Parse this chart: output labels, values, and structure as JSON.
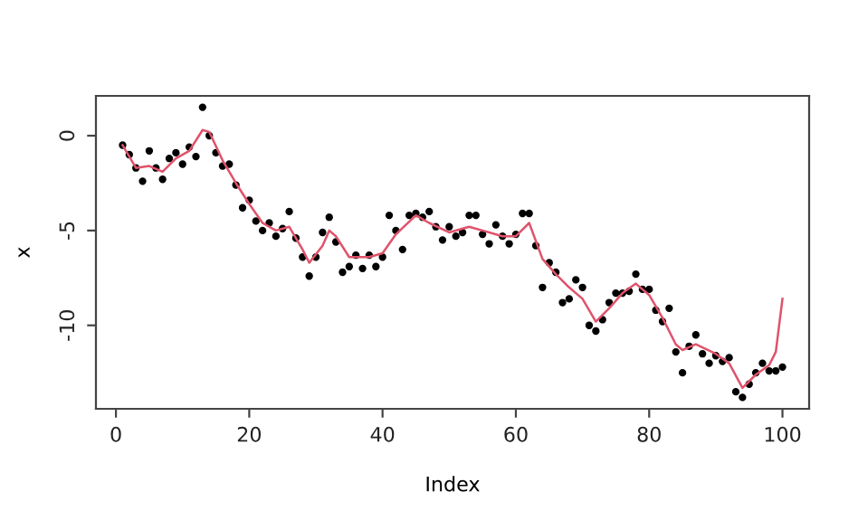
{
  "chart_data": {
    "type": "scatter",
    "xlabel": "Index",
    "ylabel": "x",
    "xlim": [
      -3,
      104
    ],
    "ylim": [
      -14.4,
      2.1
    ],
    "xticks": [
      0,
      20,
      40,
      60,
      80,
      100
    ],
    "yticks": [
      0,
      -5,
      -10
    ],
    "grid": false,
    "series": [
      {
        "color": "#000000",
        "marker": "circle",
        "x": [
          1,
          2,
          3,
          4,
          5,
          6,
          7,
          8,
          9,
          10,
          11,
          12,
          13,
          14,
          15,
          16,
          17,
          18,
          19,
          20,
          21,
          22,
          23,
          24,
          25,
          26,
          27,
          28,
          29,
          30,
          31,
          32,
          33,
          34,
          35,
          36,
          37,
          38,
          39,
          40,
          41,
          42,
          43,
          44,
          45,
          46,
          47,
          48,
          49,
          50,
          51,
          52,
          53,
          54,
          55,
          56,
          57,
          58,
          59,
          60,
          61,
          62,
          63,
          64,
          65,
          66,
          67,
          68,
          69,
          70,
          71,
          72,
          73,
          74,
          75,
          76,
          77,
          78,
          79,
          80,
          81,
          82,
          83,
          84,
          85,
          86,
          87,
          88,
          89,
          90,
          91,
          92,
          93,
          94,
          95,
          96,
          97,
          98,
          99,
          100
        ],
        "values": [
          -0.5,
          -1.0,
          -1.7,
          -2.4,
          -0.8,
          -1.7,
          -2.3,
          -1.2,
          -0.9,
          -1.5,
          -0.6,
          -1.1,
          1.5,
          0,
          -0.9,
          -1.6,
          -1.5,
          -2.6,
          -3.8,
          -3.4,
          -4.5,
          -5.0,
          -4.6,
          -5.3,
          -4.9,
          -4.0,
          -5.4,
          -6.4,
          -7.4,
          -6.4,
          -5.1,
          -4.3,
          -5.6,
          -7.2,
          -6.9,
          -6.3,
          -7.0,
          -6.3,
          -6.9,
          -6.4,
          -4.2,
          -5.0,
          -6.0,
          -4.2,
          -4.1,
          -4.3,
          -4.0,
          -4.8,
          -5.5,
          -4.8,
          -5.3,
          -5.1,
          -4.2,
          -4.2,
          -5.2,
          -5.7,
          -4.7,
          -5.3,
          -5.7,
          -5.2,
          -4.1,
          -4.1,
          -5.8,
          -8.0,
          -6.7,
          -7.2,
          -8.8,
          -8.6,
          -7.6,
          -8.0,
          -10.0,
          -10.3,
          -9.7,
          -8.8,
          -8.3,
          -8.3,
          -8.2,
          -7.3,
          -8.1,
          -8.1,
          -9.2,
          -9.8,
          -9.1,
          -11.4,
          -12.5,
          -11.1,
          -10.5,
          -11.5,
          -12.0,
          -11.6,
          -11.9,
          -11.7,
          -13.5,
          -13.8,
          -13.1,
          -12.5,
          -12.0,
          -12.4,
          -12.4,
          -12.2
        ]
      },
      {
        "type": "line",
        "color": "#df536b",
        "line_style": "solid",
        "marker": "none",
        "x": [
          1,
          3,
          5,
          7,
          9,
          11,
          13,
          14,
          16,
          18,
          20,
          22,
          24,
          26,
          28,
          29,
          31,
          32,
          33,
          35,
          38,
          40,
          42,
          45,
          47,
          50,
          53,
          55,
          58,
          60,
          62,
          64,
          66,
          68,
          70,
          72,
          74,
          76,
          78,
          80,
          82,
          84,
          85,
          87,
          90,
          92,
          94,
          96,
          98,
          99,
          100
        ],
        "values": [
          -0.5,
          -1.7,
          -1.6,
          -1.9,
          -1.2,
          -0.8,
          0.3,
          0.2,
          -1.3,
          -2.5,
          -3.6,
          -4.6,
          -5.0,
          -4.8,
          -6.0,
          -6.7,
          -5.8,
          -5.0,
          -5.3,
          -6.4,
          -6.4,
          -6.2,
          -5.2,
          -4.2,
          -4.6,
          -5.1,
          -4.8,
          -5.0,
          -5.3,
          -5.3,
          -4.6,
          -6.5,
          -7.3,
          -8.0,
          -8.6,
          -9.8,
          -9.1,
          -8.3,
          -7.8,
          -8.4,
          -9.6,
          -11.0,
          -11.3,
          -11.0,
          -11.5,
          -12.0,
          -13.3,
          -12.6,
          -12.1,
          -11.4,
          -8.6
        ]
      }
    ]
  }
}
